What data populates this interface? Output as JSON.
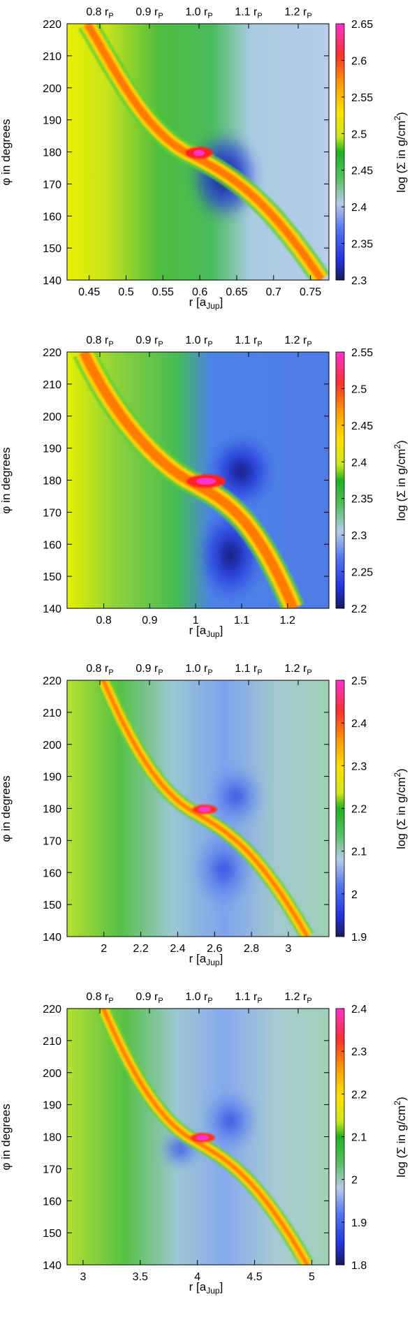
{
  "panels": [
    {
      "xlabel": "r [a",
      "xlabel_sub": "Jup",
      "xlabel_end": "]",
      "ylabel": "φ in degrees",
      "cblabel": "log (Σ in g/cm",
      "cblabel_sup": "2",
      "cblabel_end": ")",
      "xlim": [
        0.42,
        0.775
      ],
      "xticks": [
        {
          "v": 0.45,
          "t": "0.45"
        },
        {
          "v": 0.5,
          "t": "0.5"
        },
        {
          "v": 0.55,
          "t": "0.55"
        },
        {
          "v": 0.6,
          "t": "0.6"
        },
        {
          "v": 0.65,
          "t": "0.65"
        },
        {
          "v": 0.7,
          "t": "0.7"
        },
        {
          "v": 0.75,
          "t": "0.75"
        }
      ],
      "yticks": [
        "140",
        "150",
        "160",
        "170",
        "180",
        "190",
        "200",
        "210",
        "220"
      ],
      "cbticks": [
        "2.3",
        "2.35",
        "2.4",
        "2.45",
        "2.5",
        "2.55",
        "2.6",
        "2.65"
      ],
      "top_ticks": [
        "0.8 r",
        "0.9 r",
        "1.0 r",
        "1.1 r",
        "1.2 r"
      ],
      "top_sub": "P"
    },
    {
      "xlabel": "r [a",
      "xlabel_sub": "Jup",
      "xlabel_end": "]",
      "ylabel": "φ in degrees",
      "cblabel": "log (Σ in g/cm",
      "cblabel_sup": "2",
      "cblabel_end": ")",
      "xlim": [
        0.72,
        1.29
      ],
      "xticks": [
        {
          "v": 0.8,
          "t": "0.8"
        },
        {
          "v": 0.9,
          "t": "0.9"
        },
        {
          "v": 1.0,
          "t": "1"
        },
        {
          "v": 1.1,
          "t": "1.1"
        },
        {
          "v": 1.2,
          "t": "1.2"
        }
      ],
      "yticks": [
        "140",
        "150",
        "160",
        "170",
        "180",
        "190",
        "200",
        "210",
        "220"
      ],
      "cbticks": [
        "2.2",
        "2.25",
        "2.3",
        "2.35",
        "2.4",
        "2.45",
        "2.5",
        "2.55"
      ],
      "top_ticks": [
        "0.8 r",
        "0.9 r",
        "1.0 r",
        "1.1 r",
        "1.2 r"
      ],
      "top_sub": "P"
    },
    {
      "xlabel": "r [a",
      "xlabel_sub": "Jup",
      "xlabel_end": "]",
      "ylabel": "φ in degrees",
      "cblabel": "log (Σ in g/cm",
      "cblabel_sup": "2",
      "cblabel_end": ")",
      "xlim": [
        1.8,
        3.22
      ],
      "xticks": [
        {
          "v": 2.0,
          "t": "2"
        },
        {
          "v": 2.2,
          "t": "2.2"
        },
        {
          "v": 2.4,
          "t": "2.4"
        },
        {
          "v": 2.6,
          "t": "2.6"
        },
        {
          "v": 2.8,
          "t": "2.8"
        },
        {
          "v": 3.0,
          "t": "3"
        }
      ],
      "yticks": [
        "140",
        "150",
        "160",
        "170",
        "180",
        "190",
        "200",
        "210",
        "220"
      ],
      "cbticks": [
        "1.9",
        "2",
        "2.1",
        "2.2",
        "2.3",
        "2.4",
        "2.5"
      ],
      "top_ticks": [
        "0.8 r",
        "0.9 r",
        "1.0 r",
        "1.1 r",
        "1.2 r"
      ],
      "top_sub": "P"
    },
    {
      "xlabel": "r [a",
      "xlabel_sub": "Jup",
      "xlabel_end": "]",
      "ylabel": "φ in degrees",
      "cblabel": "log (Σ in g/cm",
      "cblabel_sup": "2",
      "cblabel_end": ")",
      "xlim": [
        2.86,
        5.15
      ],
      "xticks": [
        {
          "v": 3.0,
          "t": "3"
        },
        {
          "v": 3.5,
          "t": "3.5"
        },
        {
          "v": 4.0,
          "t": "4"
        },
        {
          "v": 4.5,
          "t": "4.5"
        },
        {
          "v": 5.0,
          "t": "5"
        }
      ],
      "yticks": [
        "140",
        "150",
        "160",
        "170",
        "180",
        "190",
        "200",
        "210",
        "220"
      ],
      "cbticks": [
        "1.8",
        "1.9",
        "2",
        "2.1",
        "2.2",
        "2.3",
        "2.4"
      ],
      "top_ticks": [
        "0.8 r",
        "0.9 r",
        "1.0 r",
        "1.1 r",
        "1.2 r"
      ],
      "top_sub": "P"
    }
  ],
  "chart_data": [
    {
      "type": "heatmap",
      "xlim": [
        0.42,
        0.775
      ],
      "ylim": [
        140,
        220
      ],
      "clim": [
        2.3,
        2.65
      ],
      "planet": {
        "r": 0.6,
        "phi": 180
      },
      "xticks": [
        0.45,
        0.5,
        0.55,
        0.6,
        0.65,
        0.7,
        0.75
      ],
      "yticks": [
        140,
        150,
        160,
        170,
        180,
        190,
        200,
        210,
        220
      ],
      "cbticks": [
        2.3,
        2.35,
        2.4,
        2.45,
        2.5,
        2.55,
        2.6,
        2.65
      ],
      "top_axis": "0.8 rP, 0.9 rP, 1.0 rP, 1.1 rP, 1.2 rP",
      "colormap": [
        "#1a1a5a",
        "#2233dd",
        "#5577ee",
        "#b8cbe8",
        "#55c061",
        "#22b022",
        "#cce820",
        "#ffe000",
        "#ffa000",
        "#ff3030",
        "#ff33cc"
      ]
    },
    {
      "type": "heatmap",
      "xlim": [
        0.72,
        1.29
      ],
      "ylim": [
        140,
        220
      ],
      "clim": [
        2.2,
        2.55
      ],
      "planet": {
        "r": 1.0,
        "phi": 180
      },
      "xticks": [
        0.8,
        0.9,
        1.0,
        1.1,
        1.2
      ],
      "yticks": [
        140,
        150,
        160,
        170,
        180,
        190,
        200,
        210,
        220
      ],
      "cbticks": [
        2.2,
        2.25,
        2.3,
        2.35,
        2.4,
        2.45,
        2.5,
        2.55
      ],
      "top_axis": "0.8 rP, 0.9 rP, 1.0 rP, 1.1 rP, 1.2 rP"
    },
    {
      "type": "heatmap",
      "xlim": [
        1.8,
        3.22
      ],
      "ylim": [
        140,
        220
      ],
      "clim": [
        1.9,
        2.5
      ],
      "planet": {
        "r": 2.5,
        "phi": 180
      },
      "xticks": [
        2.0,
        2.2,
        2.4,
        2.6,
        2.8,
        3.0
      ],
      "yticks": [
        140,
        150,
        160,
        170,
        180,
        190,
        200,
        210,
        220
      ],
      "cbticks": [
        1.9,
        2.0,
        2.1,
        2.2,
        2.3,
        2.4,
        2.5
      ],
      "top_axis": "0.8 rP, 0.9 rP, 1.0 rP, 1.1 rP, 1.2 rP"
    },
    {
      "type": "heatmap",
      "xlim": [
        2.86,
        5.15
      ],
      "ylim": [
        140,
        220
      ],
      "clim": [
        1.8,
        2.4
      ],
      "planet": {
        "r": 4.0,
        "phi": 180
      },
      "xticks": [
        3.0,
        3.5,
        4.0,
        4.5,
        5.0
      ],
      "yticks": [
        140,
        150,
        160,
        170,
        180,
        190,
        200,
        210,
        220
      ],
      "cbticks": [
        1.8,
        1.9,
        2.0,
        2.1,
        2.2,
        2.3,
        2.4
      ],
      "top_axis": "0.8 rP, 0.9 rP, 1.0 rP, 1.1 rP, 1.2 rP"
    }
  ]
}
